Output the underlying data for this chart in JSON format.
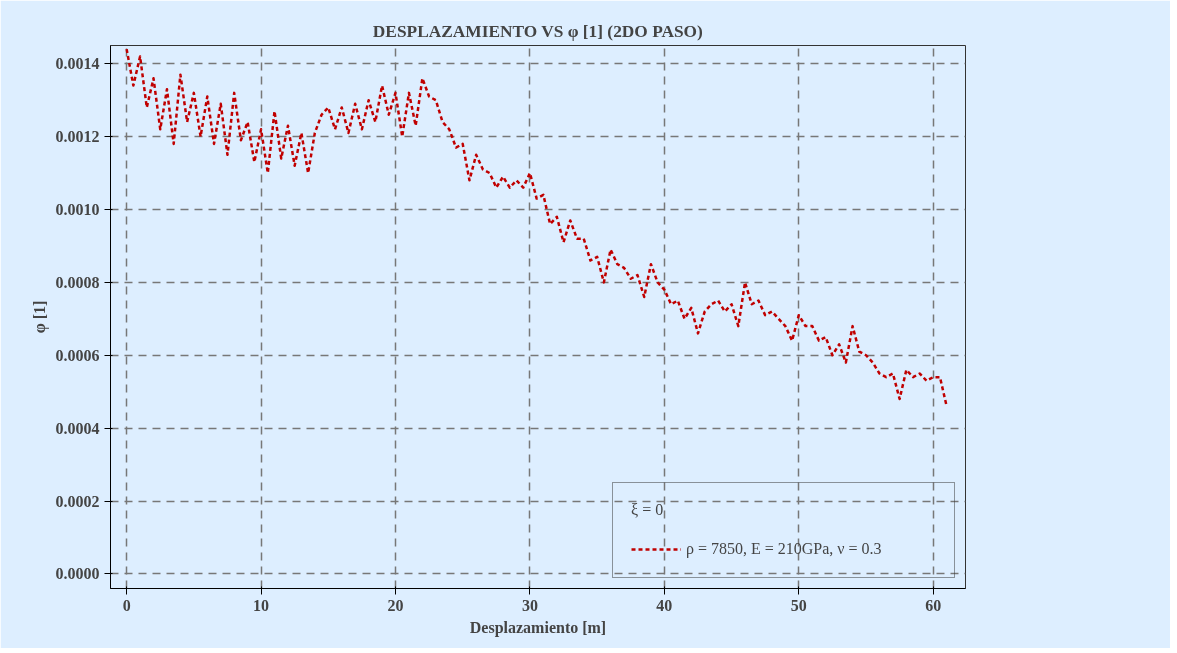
{
  "chart_data": {
    "type": "line",
    "title": "DESPLAZAMIENTO VS φ [1] (2DO PASO)",
    "xlabel": "Desplazamiento [m]",
    "ylabel": "φ [1]",
    "legend_title": "ξ = 0",
    "xlim": [
      -1.2,
      62.4
    ],
    "ylim": [
      -4e-05,
      0.00145
    ],
    "xticks": [
      0,
      10,
      20,
      30,
      40,
      50,
      60
    ],
    "yticks": [
      {
        "value": 0,
        "label": "0.0000"
      },
      {
        "value": 0.0002,
        "label": "0.0002"
      },
      {
        "value": 0.0004,
        "label": "0.0004"
      },
      {
        "value": 0.0006,
        "label": "0.0006"
      },
      {
        "value": 0.0008,
        "label": "0.0008"
      },
      {
        "value": 0.001,
        "label": "0.0010"
      },
      {
        "value": 0.0012,
        "label": "0.0012"
      },
      {
        "value": 0.0014,
        "label": "0.0014"
      }
    ],
    "grid": true,
    "legend": "bottom right",
    "marker": "none",
    "line_style": "dashed",
    "x": [
      0,
      0.5,
      1,
      1.5,
      2,
      2.5,
      3,
      3.5,
      4,
      4.5,
      5,
      5.5,
      6,
      6.5,
      7,
      7.5,
      8,
      8.5,
      9,
      9.5,
      10,
      10.5,
      11,
      11.5,
      12,
      12.5,
      13,
      13.5,
      14,
      14.5,
      15,
      15.5,
      16,
      16.5,
      17,
      17.5,
      18,
      18.5,
      19,
      19.5,
      20,
      20.5,
      21,
      21.5,
      22,
      22.5,
      23,
      23.5,
      24,
      24.5,
      25,
      25.5,
      26,
      26.5,
      27,
      27.5,
      28,
      28.5,
      29,
      29.5,
      30,
      30.5,
      31,
      31.5,
      32,
      32.5,
      33,
      33.5,
      34,
      34.5,
      35,
      35.5,
      36,
      36.5,
      37,
      37.5,
      38,
      38.5,
      39,
      39.5,
      40,
      40.5,
      41,
      41.5,
      42,
      42.5,
      43,
      43.5,
      44,
      44.5,
      45,
      45.5,
      46,
      46.5,
      47,
      47.5,
      48,
      48.5,
      49,
      49.5,
      50,
      50.5,
      51,
      51.5,
      52,
      52.5,
      53,
      53.5,
      54,
      54.5,
      55,
      55.5,
      56,
      56.5,
      57,
      57.5,
      58,
      58.5,
      59,
      59.5,
      60,
      60.5,
      61
    ],
    "series": [
      {
        "name": "ρ = 7850, E = 210GPa, ν = 0.3",
        "color": "#c00000",
        "values": [
          0.00144,
          0.00134,
          0.00142,
          0.00128,
          0.00136,
          0.00122,
          0.00133,
          0.00118,
          0.00137,
          0.00124,
          0.00132,
          0.0012,
          0.00131,
          0.00118,
          0.00129,
          0.00115,
          0.00132,
          0.00119,
          0.00124,
          0.00113,
          0.00122,
          0.0011,
          0.00127,
          0.00114,
          0.00123,
          0.00112,
          0.00121,
          0.0011,
          0.00121,
          0.00126,
          0.00128,
          0.00122,
          0.00128,
          0.00121,
          0.00129,
          0.00122,
          0.0013,
          0.00124,
          0.00134,
          0.00126,
          0.00132,
          0.0012,
          0.00132,
          0.00123,
          0.00136,
          0.00131,
          0.0013,
          0.00124,
          0.00122,
          0.00117,
          0.00118,
          0.00108,
          0.00115,
          0.00111,
          0.0011,
          0.00106,
          0.00109,
          0.00106,
          0.00108,
          0.00106,
          0.0011,
          0.00103,
          0.00104,
          0.00096,
          0.00098,
          0.00091,
          0.00097,
          0.00092,
          0.00092,
          0.00086,
          0.00087,
          0.0008,
          0.00089,
          0.00085,
          0.00084,
          0.00081,
          0.00082,
          0.00076,
          0.00085,
          0.0008,
          0.00078,
          0.00074,
          0.00075,
          0.0007,
          0.00073,
          0.00066,
          0.00072,
          0.00074,
          0.00075,
          0.00072,
          0.00074,
          0.00068,
          0.0008,
          0.00074,
          0.00075,
          0.00071,
          0.00072,
          0.0007,
          0.00068,
          0.00064,
          0.00071,
          0.00068,
          0.00068,
          0.00064,
          0.00065,
          0.0006,
          0.00063,
          0.00058,
          0.00068,
          0.00061,
          0.0006,
          0.00058,
          0.00055,
          0.00054,
          0.00055,
          0.00048,
          0.00056,
          0.00054,
          0.00055,
          0.00053,
          0.00054,
          0.00054,
          0.00046
        ]
      }
    ]
  }
}
